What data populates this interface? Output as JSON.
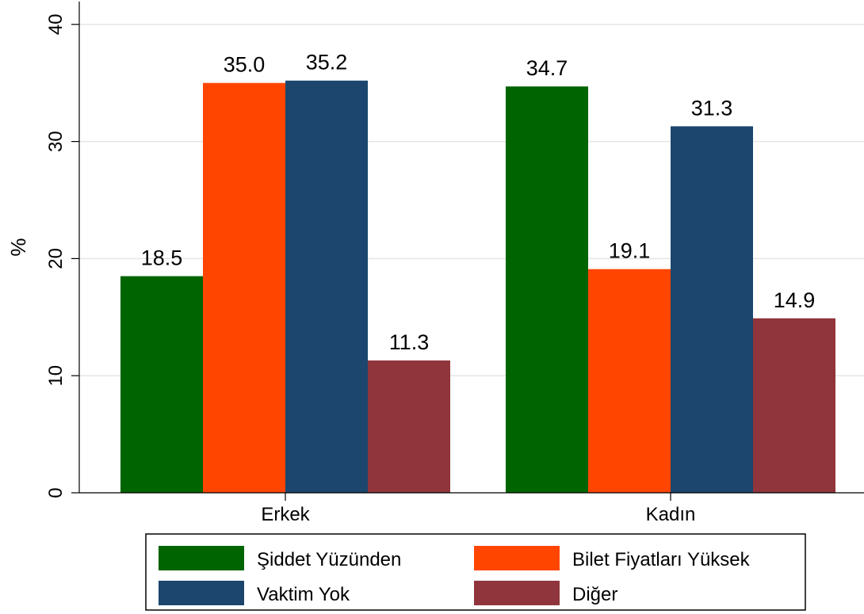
{
  "chart_data": {
    "type": "bar",
    "title": "",
    "xlabel": "",
    "ylabel": "%",
    "ylim": [
      0,
      42
    ],
    "yticks": [
      0,
      10,
      20,
      30,
      40
    ],
    "grid": true,
    "legend_position": "bottom",
    "categories": [
      "Erkek",
      "Kadın"
    ],
    "series": [
      {
        "name": "Şiddet Yüzünden",
        "color": "#006400",
        "values": [
          18.5,
          34.7
        ],
        "labels": [
          "18.5",
          "34.7"
        ]
      },
      {
        "name": "Bilet Fiyatları Yüksek",
        "color": "#ff4500",
        "values": [
          35.0,
          19.1
        ],
        "labels": [
          "35.0",
          "19.1"
        ]
      },
      {
        "name": "Vaktim Yok",
        "color": "#1c466e",
        "values": [
          35.2,
          31.3
        ],
        "labels": [
          "35.2",
          "31.3"
        ]
      },
      {
        "name": "Diğer",
        "color": "#90353b",
        "values": [
          11.3,
          14.9
        ],
        "labels": [
          "11.3",
          "14.9"
        ]
      }
    ]
  }
}
